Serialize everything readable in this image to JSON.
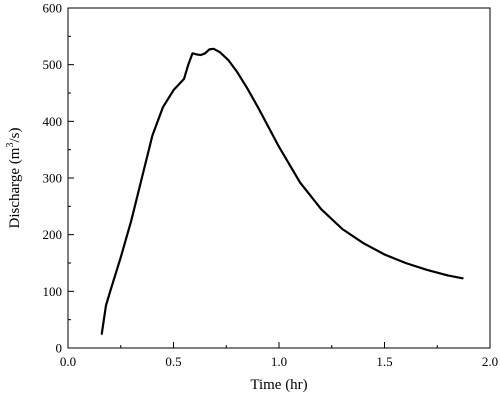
{
  "chart_data": {
    "type": "line",
    "xlabel": "Time (hr)",
    "ylabel": {
      "prefix": "Discharge (m",
      "sup": "3",
      "suffix": "/s)"
    },
    "xlim": [
      0.0,
      2.0
    ],
    "ylim": [
      0,
      600
    ],
    "xticks": [
      0.0,
      0.5,
      1.0,
      1.5,
      2.0
    ],
    "xtick_labels": [
      "0.0",
      "0.5",
      "1.0",
      "1.5",
      "2.0"
    ],
    "yticks": [
      0,
      100,
      200,
      300,
      400,
      500,
      600
    ],
    "ytick_labels": [
      "0",
      "100",
      "200",
      "300",
      "400",
      "500",
      "600"
    ],
    "grid": false,
    "series": [
      {
        "color": "#000000",
        "x": [
          0.16,
          0.18,
          0.2,
          0.25,
          0.3,
          0.35,
          0.4,
          0.45,
          0.5,
          0.55,
          0.57,
          0.59,
          0.61,
          0.63,
          0.65,
          0.67,
          0.69,
          0.72,
          0.76,
          0.8,
          0.85,
          0.9,
          0.95,
          1.0,
          1.1,
          1.2,
          1.3,
          1.4,
          1.5,
          1.6,
          1.7,
          1.8,
          1.87
        ],
        "y": [
          25,
          75,
          100,
          160,
          225,
          300,
          375,
          425,
          455,
          475,
          500,
          520,
          518,
          517,
          520,
          527,
          528,
          522,
          508,
          488,
          458,
          425,
          390,
          355,
          292,
          245,
          210,
          185,
          165,
          150,
          138,
          128,
          123
        ]
      }
    ]
  }
}
